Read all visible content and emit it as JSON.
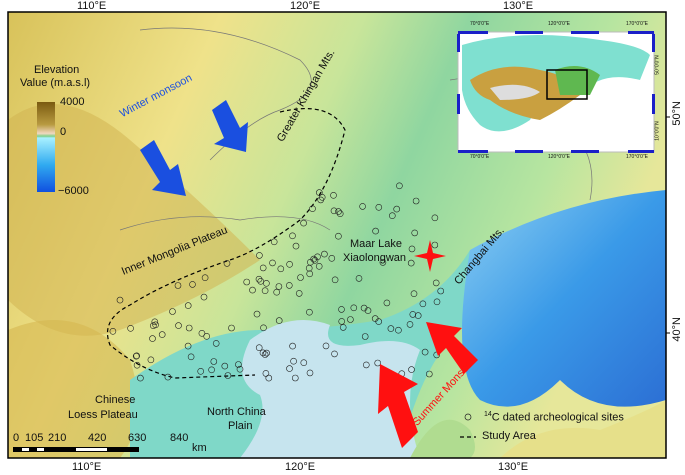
{
  "axes": {
    "top_ticks": [
      "110°E",
      "120°E",
      "130°E"
    ],
    "bottom_ticks": [
      "110°E",
      "120°E",
      "130°E"
    ],
    "right_ticks": [
      "50°N",
      "40°N"
    ]
  },
  "legend": {
    "title_line1": "Elevation",
    "title_line2": "Value (m.a.s.l)",
    "max": "4000",
    "zero": "0",
    "min": "−6000"
  },
  "labels": {
    "winter_monsoon": "Winter monsoon",
    "summer_monsoon": "Summer Monsoon",
    "greater_khingan": "Greater Khingan Mts.",
    "inner_mongolia": "Inner Mongolia Plateau",
    "changbai": "Changbai Mts.",
    "maar_lake_1": "Maar Lake",
    "maar_lake_2": "Xiaolongwan",
    "loess_1": "Chinese",
    "loess_2": "Loess Plateau",
    "ncp_1": "North China",
    "ncp_2": "Plain"
  },
  "map_legend": {
    "sites": "C dated archeological sites",
    "sites_superscript": "14",
    "study_area": "Study Area"
  },
  "scale_bar": {
    "ticks": [
      "0",
      "105",
      "210",
      "420",
      "630",
      "840"
    ],
    "unit": "km"
  },
  "inset": {
    "top_ticks": [
      "70°0'0\"E",
      "120°0'0\"E",
      "170°0'0\"E"
    ],
    "bottom_ticks": [
      "70°0'0\"E",
      "120°0'0\"E",
      "170°0'0\"E"
    ],
    "right_ticks": [
      "50°0'0\"N",
      "10°0'0\"N"
    ]
  },
  "colors": {
    "winter_arrow": "#1a4fe0",
    "summer_arrow": "#ff1010",
    "site_marker": "#222222",
    "study_area_line": "#000000"
  }
}
